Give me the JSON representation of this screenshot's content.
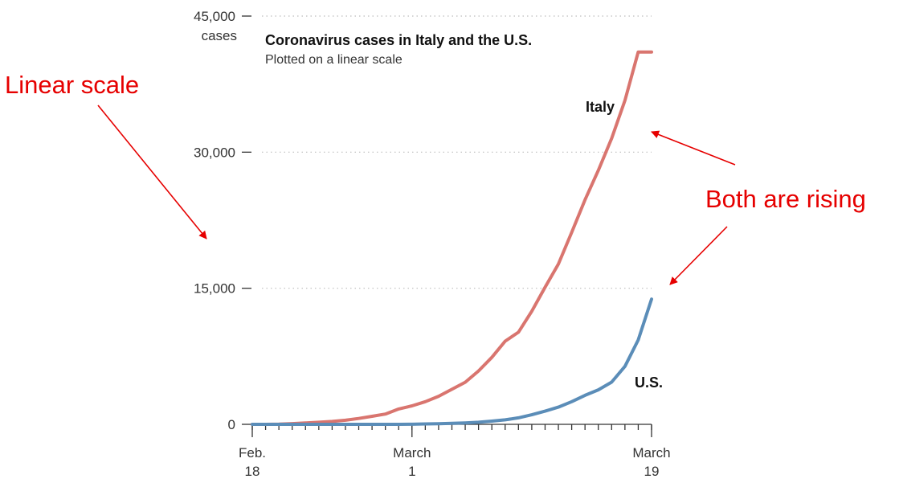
{
  "chart_data": {
    "type": "line",
    "title": "Coronavirus cases in Italy and the U.S.",
    "subtitle": "Plotted on a linear scale",
    "ylabel": "cases",
    "ylim": [
      0,
      45000
    ],
    "yticks": [
      0,
      15000,
      30000,
      45000
    ],
    "ytick_labels": [
      "0",
      "15,000",
      "30,000",
      "45,000"
    ],
    "xlim": [
      0,
      30
    ],
    "xticks": [
      {
        "x": 0,
        "line1": "Feb.",
        "line2": "18"
      },
      {
        "x": 12,
        "line1": "March",
        "line2": "1"
      },
      {
        "x": 30,
        "line1": "March",
        "line2": "19"
      }
    ],
    "grid": true,
    "series": [
      {
        "name": "Italy",
        "color": "#d9756f",
        "x": [
          0,
          1,
          2,
          3,
          4,
          5,
          6,
          7,
          8,
          9,
          10,
          11,
          12,
          13,
          14,
          15,
          16,
          17,
          18,
          19,
          20,
          21,
          22,
          23,
          24,
          25,
          26,
          27,
          28,
          29,
          30
        ],
        "values": [
          0,
          0,
          20,
          80,
          150,
          230,
          320,
          450,
          650,
          890,
          1130,
          1690,
          2040,
          2500,
          3090,
          3860,
          4640,
          5880,
          7380,
          9170,
          10150,
          12460,
          15110,
          17660,
          21160,
          24750,
          27980,
          31510,
          35710,
          41040,
          41040
        ]
      },
      {
        "name": "U.S.",
        "color": "#5b8db8",
        "x": [
          0,
          1,
          2,
          3,
          4,
          5,
          6,
          7,
          8,
          9,
          10,
          11,
          12,
          13,
          14,
          15,
          16,
          17,
          18,
          19,
          20,
          21,
          22,
          23,
          24,
          25,
          26,
          27,
          28,
          29,
          30
        ],
        "values": [
          0,
          0,
          0,
          0,
          0,
          0,
          0,
          0,
          0,
          0,
          0,
          0,
          10,
          40,
          70,
          110,
          160,
          230,
          350,
          500,
          720,
          1050,
          1450,
          1900,
          2500,
          3200,
          3800,
          4650,
          6400,
          9300,
          13800
        ]
      }
    ]
  },
  "annotations": {
    "linear_scale": "Linear scale",
    "both_rising": "Both are rising"
  }
}
